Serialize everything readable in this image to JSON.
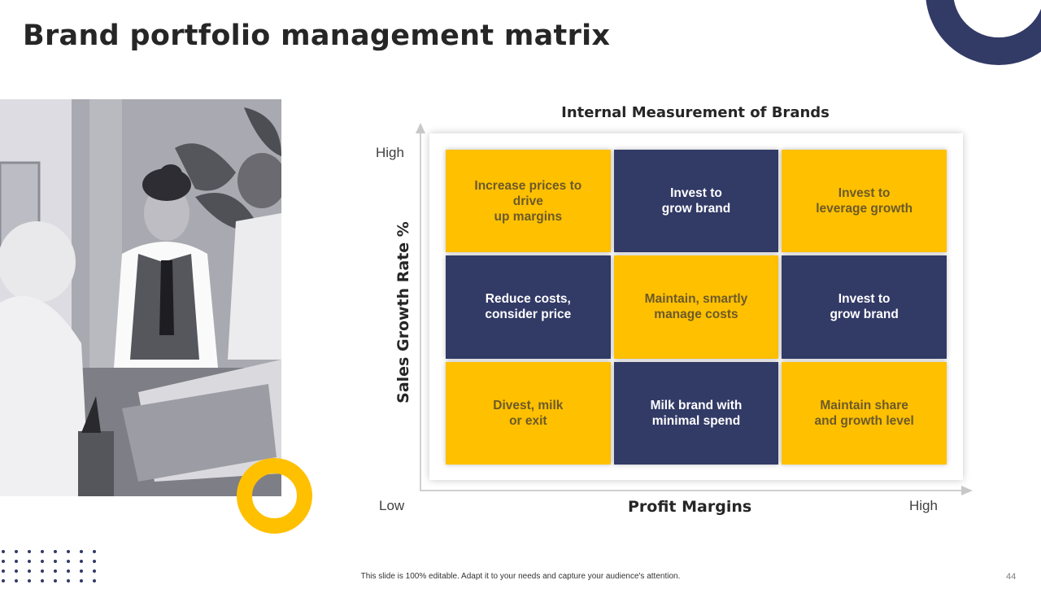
{
  "slide": {
    "title": "Brand portfolio management matrix",
    "footer_note": "This slide is 100% editable. Adapt it to your needs and capture your audience's attention.",
    "page_number": "44"
  },
  "matrix": {
    "heading": "Internal Measurement of Brands",
    "y_axis_title": "Sales Growth Rate %",
    "x_axis_title": "Profit Margins",
    "y_high_label": "High",
    "origin_label": "Low",
    "x_high_label": "High",
    "cells": [
      {
        "text": "Increase prices to\ndrive\nup margins",
        "tone": "yellow"
      },
      {
        "text": "Invest to\ngrow brand",
        "tone": "navy"
      },
      {
        "text": "Invest to\nleverage growth",
        "tone": "yellow"
      },
      {
        "text": "Reduce costs,\nconsider price",
        "tone": "navy"
      },
      {
        "text": "Maintain, smartly\nmanage costs",
        "tone": "yellow"
      },
      {
        "text": "Invest to\ngrow brand",
        "tone": "navy"
      },
      {
        "text": "Divest, milk\nor exit",
        "tone": "yellow"
      },
      {
        "text": "Milk brand with\nminimal spend",
        "tone": "navy"
      },
      {
        "text": "Maintain share\nand growth level",
        "tone": "yellow"
      }
    ]
  },
  "colors": {
    "navy": "#323a66",
    "yellow": "#ffc000"
  }
}
